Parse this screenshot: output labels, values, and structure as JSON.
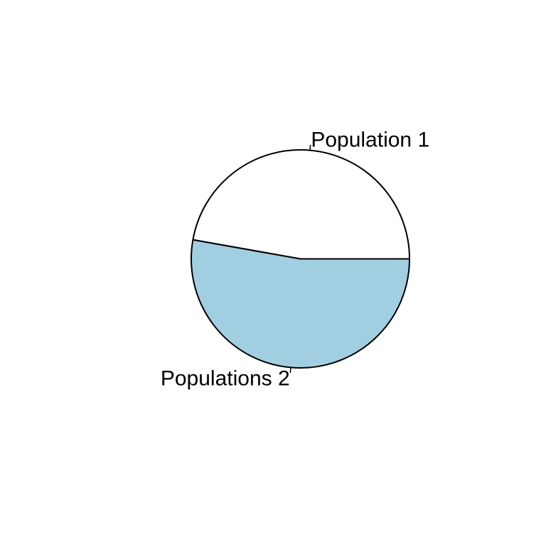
{
  "chart_data": {
    "type": "pie",
    "title": "",
    "slices": [
      {
        "label": "Population 1",
        "value": 47.2,
        "color": "#ffffff"
      },
      {
        "label": "Populations 2",
        "value": 52.8,
        "color": "#a1cfe1"
      }
    ],
    "start": "counter-clockwise from 3 o'clock",
    "legend": "none (labels beside slices)"
  }
}
